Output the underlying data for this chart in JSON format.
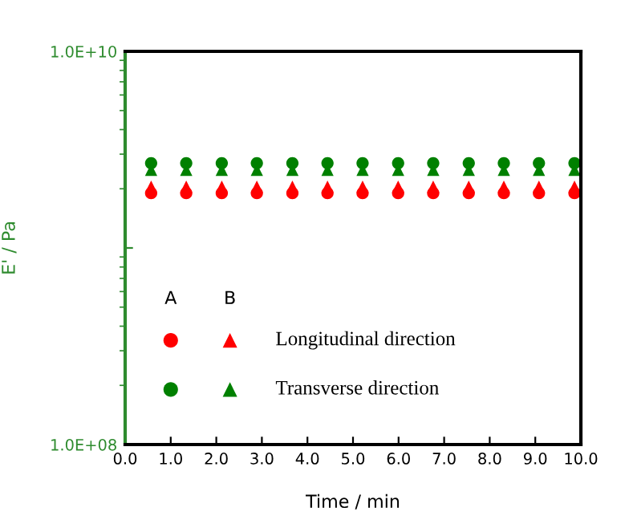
{
  "chart_data": {
    "type": "scatter",
    "xlabel": "Time / min",
    "ylabel": "E' / Pa",
    "log": "y",
    "xlim": [
      0,
      10
    ],
    "xticks": [
      {
        "value": 0,
        "label": "0.0"
      },
      {
        "value": 1,
        "label": "1.0"
      },
      {
        "value": 2,
        "label": "2.0"
      },
      {
        "value": 3,
        "label": "3.0"
      },
      {
        "value": 4,
        "label": "4.0"
      },
      {
        "value": 5,
        "label": "5.0"
      },
      {
        "value": 6,
        "label": "6.0"
      },
      {
        "value": 7,
        "label": "7.0"
      },
      {
        "value": 8,
        "label": "8.0"
      },
      {
        "value": 9,
        "label": "9.0"
      },
      {
        "value": 10,
        "label": "10.0"
      }
    ],
    "ylim": [
      100000000,
      10000000000
    ],
    "yticks": [
      {
        "value": 100000000,
        "label": "1.0E+08"
      },
      {
        "value": 1000000000,
        "label": null
      },
      {
        "value": 10000000000,
        "label": "1.0E+10"
      }
    ],
    "x": [
      0.57,
      1.34,
      2.12,
      2.89,
      3.67,
      4.44,
      5.21,
      5.99,
      6.76,
      7.54,
      8.31,
      9.08,
      9.86
    ],
    "series": [
      {
        "color": "#ff0000",
        "marker": "circle",
        "values": [
          1900000000.0,
          1900000000.0,
          1900000000.0,
          1900000000.0,
          1900000000.0,
          1900000000.0,
          1900000000.0,
          1900000000.0,
          1900000000.0,
          1900000000.0,
          1900000000.0,
          1900000000.0,
          1900000000.0
        ]
      },
      {
        "color": "#008000",
        "marker": "circle",
        "values": [
          2700000000.0,
          2700000000.0,
          2700000000.0,
          2700000000.0,
          2700000000.0,
          2700000000.0,
          2700000000.0,
          2700000000.0,
          2700000000.0,
          2700000000.0,
          2700000000.0,
          2700000000.0,
          2700000000.0
        ]
      },
      {
        "color": "#ff0000",
        "marker": "triangle",
        "values": [
          2050000000.0,
          2050000000.0,
          2050000000.0,
          2050000000.0,
          2050000000.0,
          2050000000.0,
          2050000000.0,
          2050000000.0,
          2050000000.0,
          2050000000.0,
          2050000000.0,
          2050000000.0,
          2050000000.0
        ]
      },
      {
        "color": "#008000",
        "marker": "triangle",
        "values": [
          2500000000.0,
          2500000000.0,
          2500000000.0,
          2500000000.0,
          2500000000.0,
          2500000000.0,
          2500000000.0,
          2500000000.0,
          2500000000.0,
          2500000000.0,
          2500000000.0,
          2500000000.0,
          2500000000.0
        ]
      }
    ],
    "annotations": [
      "A",
      "B",
      "Longitudinal direction",
      "Transverse direction"
    ],
    "grid": false,
    "legend": false
  }
}
